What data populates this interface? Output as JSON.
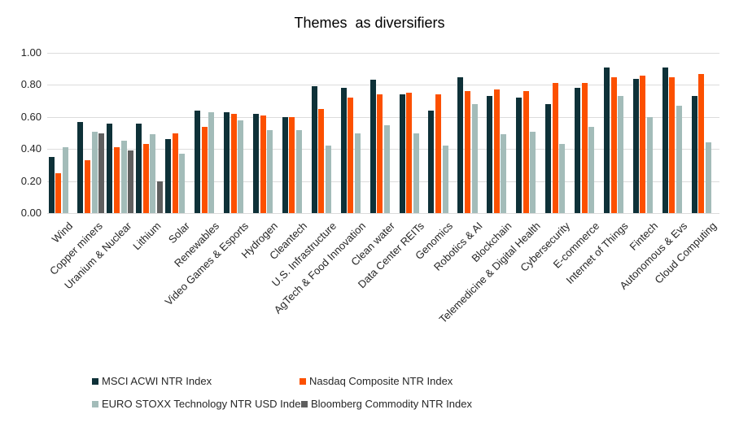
{
  "chart_data": {
    "type": "bar",
    "title": "Themes  as diversifiers",
    "xlabel": "",
    "ylabel": "",
    "ylim": [
      0,
      1.0
    ],
    "ytick_values": [
      0,
      0.2,
      0.4,
      0.6,
      0.8,
      1.0
    ],
    "ytick_labels": [
      "0.00",
      "0.20",
      "0.40",
      "0.60",
      "0.80",
      "1.00"
    ],
    "grid": true,
    "legend_position": "bottom",
    "categories": [
      "Wind",
      "Copper miners",
      "Uranium & Nuclear",
      "Lithium",
      "Solar",
      "Renewables",
      "Video Games & Esports",
      "Hydrogen",
      "Cleantech",
      "U.S. Infrastructure",
      "AgTech & Food Innovation",
      "Clean water",
      "Data Center REITs",
      "Genomics",
      "Robotics & AI",
      "Blockchain",
      "Telemedicine & Digital Health",
      "Cybersecurity",
      "E-commerce",
      "Internet of Things",
      "Fintech",
      "Autonomous & Evs",
      "Cloud Computing"
    ],
    "series": [
      {
        "name": "MSCI ACWI NTR Index",
        "color": "#0e3138",
        "values": [
          0.35,
          0.57,
          0.56,
          0.56,
          0.46,
          0.64,
          0.63,
          0.62,
          0.6,
          0.79,
          0.78,
          0.83,
          0.74,
          0.64,
          0.85,
          0.73,
          0.72,
          0.68,
          0.78,
          0.91,
          0.84,
          0.91,
          0.73
        ]
      },
      {
        "name": "Nasdaq Composite NTR Index",
        "color": "#fc5000",
        "values": [
          0.25,
          0.33,
          0.41,
          0.43,
          0.5,
          0.54,
          0.62,
          0.61,
          0.6,
          0.65,
          0.72,
          0.74,
          0.75,
          0.74,
          0.76,
          0.77,
          0.76,
          0.81,
          0.81,
          0.85,
          0.86,
          0.85,
          0.87
        ]
      },
      {
        "name": "EURO STOXX Technology NTR USD Index",
        "color": "#a3bcb9",
        "values": [
          0.41,
          0.51,
          0.45,
          0.49,
          0.37,
          0.63,
          0.58,
          0.52,
          0.52,
          0.42,
          0.5,
          0.55,
          0.5,
          0.42,
          0.68,
          0.49,
          0.51,
          0.43,
          0.54,
          0.73,
          0.6,
          0.67,
          0.44
        ]
      },
      {
        "name": "Bloomberg Commodity NTR Index",
        "color": "#5f5f5f",
        "values": [
          null,
          0.5,
          0.39,
          0.2,
          null,
          null,
          null,
          null,
          null,
          null,
          null,
          null,
          null,
          null,
          null,
          null,
          null,
          null,
          null,
          null,
          null,
          null,
          null
        ]
      }
    ]
  },
  "colors": {
    "background": "#ffffff",
    "gridline": "#dcdcdc",
    "axis_text": "#262626",
    "title_text": "#000000"
  }
}
